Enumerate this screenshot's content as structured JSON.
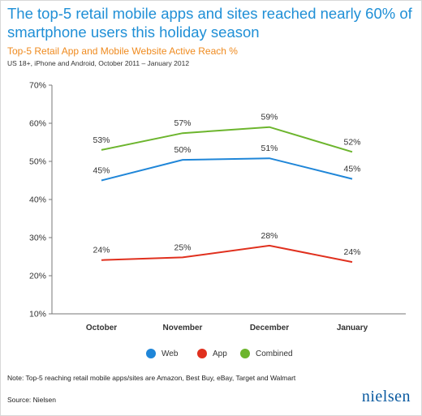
{
  "header": {
    "title": "The top-5 retail mobile apps and sites reached nearly 60% of smartphone users this holiday season",
    "subtitle": "Top-5 Retail App and Mobile Website Active Reach %",
    "subnote": "US 18+, iPhone and Android, October 2011 – January 2012"
  },
  "footer": {
    "note": "Note: Top-5 reaching retail mobile apps/sites are Amazon, Best Buy, eBay, Target and Walmart",
    "source": "Source: Nielsen",
    "logo": "nielsen"
  },
  "chart_data": {
    "type": "line",
    "categories": [
      "October",
      "November",
      "December",
      "January"
    ],
    "ylim": [
      10,
      70
    ],
    "yticks": [
      10,
      20,
      30,
      40,
      50,
      60,
      70
    ],
    "ytick_labels": [
      "10%",
      "20%",
      "30%",
      "40%",
      "50%",
      "60%",
      "70%"
    ],
    "legend_position": "bottom",
    "grid": false,
    "series": [
      {
        "name": "Web",
        "color": "#1f86d8",
        "values": [
          45,
          50.4,
          50.8,
          45.4
        ],
        "labels": [
          "45%",
          "50%",
          "51%",
          "45%"
        ]
      },
      {
        "name": "App",
        "color": "#e0301e",
        "values": [
          24.1,
          24.8,
          27.9,
          23.6
        ],
        "labels": [
          "24%",
          "25%",
          "28%",
          "24%"
        ]
      },
      {
        "name": "Combined",
        "color": "#6cb52d",
        "values": [
          53,
          57.4,
          59,
          52.5
        ],
        "labels": [
          "53%",
          "57%",
          "59%",
          "52%"
        ]
      }
    ]
  }
}
